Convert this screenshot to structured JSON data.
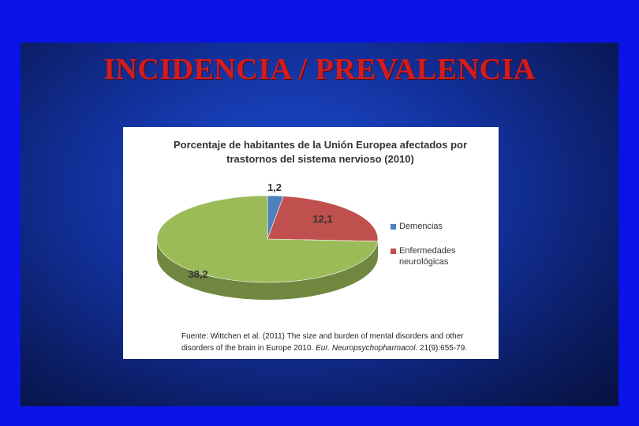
{
  "slide": {
    "title": "INCIDENCIA / PREVALENCIA"
  },
  "chart_data": {
    "type": "pie",
    "title": "Porcentaje de habitantes de la Unión Europea afectados por trastornos del sistema nervioso (2010)",
    "labels": [
      "",
      "Demencias",
      "Enfermedades neurológicas"
    ],
    "values": [
      38.2,
      1.2,
      12.1
    ],
    "value_labels": [
      "38,2",
      "1,2",
      "12,1"
    ],
    "colors": [
      "#9bbb59",
      "#4f81bd",
      "#c0504d"
    ],
    "legend_position": "right"
  },
  "source": {
    "line1": "Fuente: Wittchen et al. (2011) The size and burden of mental disorders and other",
    "line2_plain": "disorders of the brain in Europe 2010. ",
    "line2_italic": "Eur. Neuropsychopharmacol.",
    "line2_end": " 21(9):655-79."
  }
}
